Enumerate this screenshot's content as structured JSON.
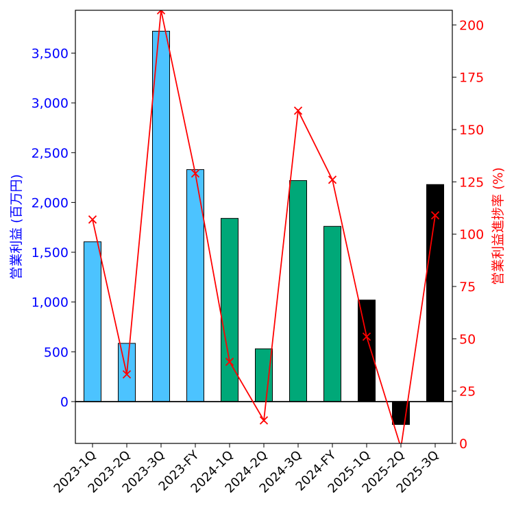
{
  "chart_data": {
    "type": "bar+line",
    "categories": [
      "2023-1Q",
      "2023-2Q",
      "2023-3Q",
      "2023-FY",
      "2024-1Q",
      "2024-2Q",
      "2024-3Q",
      "2024-FY",
      "2025-1Q",
      "2025-2Q",
      "2025-3Q"
    ],
    "bar_series": {
      "name": "営業利益 (百万円)",
      "values": [
        1605,
        585,
        3720,
        2330,
        1840,
        530,
        2220,
        1760,
        1020,
        -230,
        2180
      ],
      "colors": [
        "#4cc3ff",
        "#4cc3ff",
        "#4cc3ff",
        "#4cc3ff",
        "#00a878",
        "#00a878",
        "#00a878",
        "#00a878",
        "#000000",
        "#000000",
        "#000000"
      ]
    },
    "line_series": {
      "name": "営業利益進捗率 (%)",
      "values": [
        107,
        33,
        207,
        129,
        39,
        11,
        159,
        126,
        51,
        -2,
        109
      ],
      "color": "#ff0000",
      "marker": "x"
    },
    "ylabel_left": "営業利益 (百万円)",
    "ylabel_right": "営業利益進捗率 (%)",
    "ylim_left": [
      -420,
      3930
    ],
    "ylim_right": [
      0,
      207
    ],
    "yticks_left": [
      0,
      500,
      1000,
      1500,
      2000,
      2500,
      3000,
      3500
    ],
    "yticks_left_labels": [
      "0",
      "500",
      "1,000",
      "1,500",
      "2,000",
      "2,500",
      "3,000",
      "3,500"
    ],
    "yticks_right": [
      0,
      25,
      50,
      75,
      100,
      125,
      150,
      175,
      200
    ],
    "yticks_right_labels": [
      "0",
      "25",
      "50",
      "75",
      "100",
      "125",
      "150",
      "175",
      "200"
    ],
    "left_axis_color": "#0000ff",
    "right_axis_color": "#ff0000"
  }
}
